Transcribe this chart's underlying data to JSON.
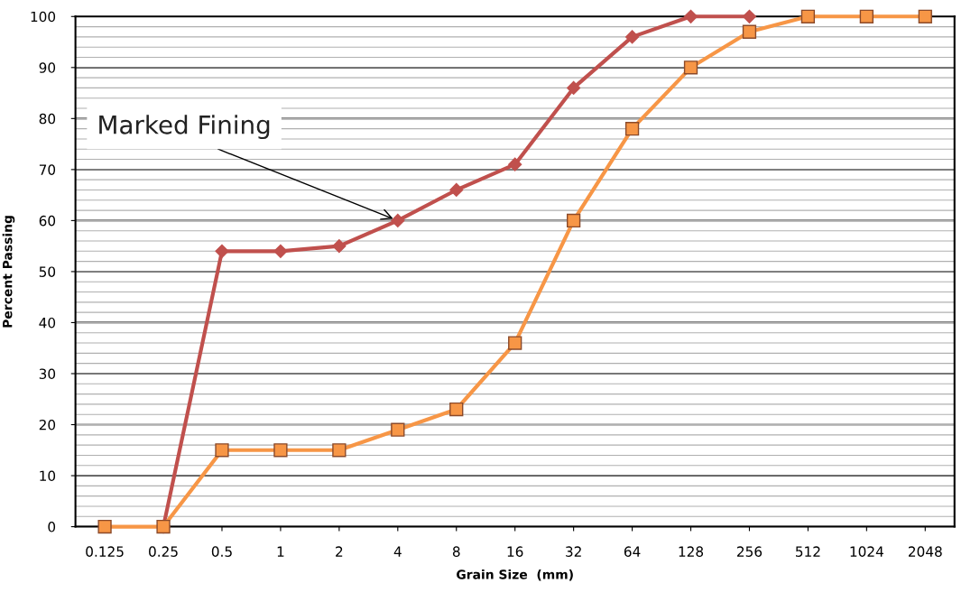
{
  "chart_data": {
    "type": "line",
    "xlabel": "Grain Size  (mm)",
    "ylabel": "Percent Passing",
    "categories": [
      "0.125",
      "0.25",
      "0.5",
      "1",
      "2",
      "4",
      "8",
      "16",
      "32",
      "64",
      "128",
      "256",
      "512",
      "1024",
      "2048"
    ],
    "series": [
      {
        "color": "#c0504d",
        "marker": "diamond",
        "values": [
          null,
          0,
          54,
          54,
          55,
          60,
          66,
          71,
          86,
          96,
          100,
          100,
          null,
          null,
          null
        ]
      },
      {
        "color": "#f79646",
        "marker": "square",
        "values": [
          0,
          0,
          15,
          15,
          15,
          19,
          23,
          36,
          60,
          78,
          90,
          97,
          100,
          100,
          100
        ]
      }
    ],
    "ylim": [
      0,
      100
    ],
    "yticks": [
      0,
      10,
      20,
      30,
      40,
      50,
      60,
      70,
      80,
      90,
      100
    ],
    "grid": "y",
    "annotations": [
      {
        "text": "Marked Fining",
        "x": "4",
        "y": 60
      }
    ]
  }
}
